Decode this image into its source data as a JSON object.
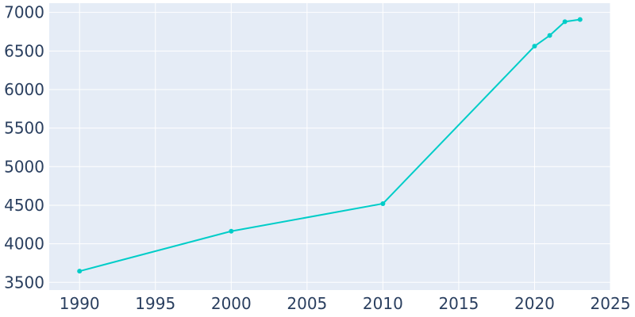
{
  "chart_data": {
    "type": "line",
    "title": "",
    "xlabel": "",
    "ylabel": "",
    "x": [
      1990,
      2000,
      2010,
      2020,
      2021,
      2022,
      2023
    ],
    "series": [
      {
        "values": [
          3645,
          4163,
          4520,
          6562,
          6701,
          6880,
          6908
        ]
      }
    ],
    "xlim": [
      1988,
      2025
    ],
    "ylim": [
      3400,
      7120
    ],
    "xticks": [
      1990,
      1995,
      2000,
      2005,
      2010,
      2015,
      2020,
      2025
    ],
    "yticks": [
      3500,
      4000,
      4500,
      5000,
      5500,
      6000,
      6500,
      7000
    ],
    "grid": true,
    "line_color": "#00cdc8",
    "plot_background": "#e5ecf6"
  }
}
